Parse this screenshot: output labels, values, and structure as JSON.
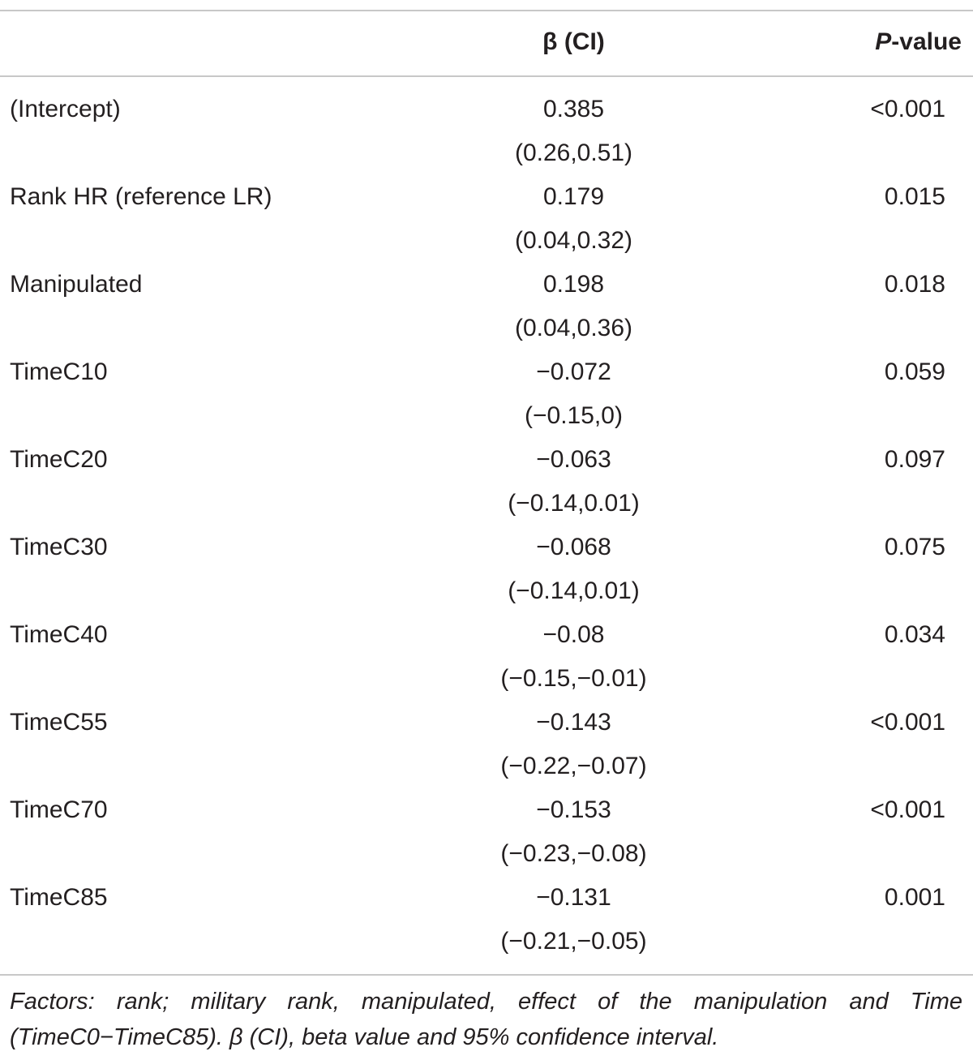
{
  "table": {
    "header": {
      "beta_label": "β (CI)",
      "p_italic": "P",
      "p_rest": "-value"
    },
    "rows": [
      {
        "factor": "(Intercept)",
        "beta": "0.385",
        "ci": "(0.26,0.51)",
        "p": "<0.001"
      },
      {
        "factor": "Rank HR (reference LR)",
        "beta": "0.179",
        "ci": "(0.04,0.32)",
        "p": "0.015"
      },
      {
        "factor": "Manipulated",
        "beta": "0.198",
        "ci": "(0.04,0.36)",
        "p": "0.018"
      },
      {
        "factor": "TimeC10",
        "beta": "−0.072",
        "ci": "(−0.15,0)",
        "p": "0.059"
      },
      {
        "factor": "TimeC20",
        "beta": "−0.063",
        "ci": "(−0.14,0.01)",
        "p": "0.097"
      },
      {
        "factor": "TimeC30",
        "beta": "−0.068",
        "ci": "(−0.14,0.01)",
        "p": "0.075"
      },
      {
        "factor": "TimeC40",
        "beta": "−0.08",
        "ci": "(−0.15,−0.01)",
        "p": "0.034"
      },
      {
        "factor": "TimeC55",
        "beta": "−0.143",
        "ci": "(−0.22,−0.07)",
        "p": "<0.001"
      },
      {
        "factor": "TimeC70",
        "beta": "−0.153",
        "ci": "(−0.23,−0.08)",
        "p": "<0.001"
      },
      {
        "factor": "TimeC85",
        "beta": "−0.131",
        "ci": "(−0.21,−0.05)",
        "p": "0.001"
      }
    ],
    "footnote": "Factors: rank; military rank, manipulated, effect of the manipulation and Time (TimeC0−TimeC85). β (CI), beta value and 95% confidence interval."
  }
}
